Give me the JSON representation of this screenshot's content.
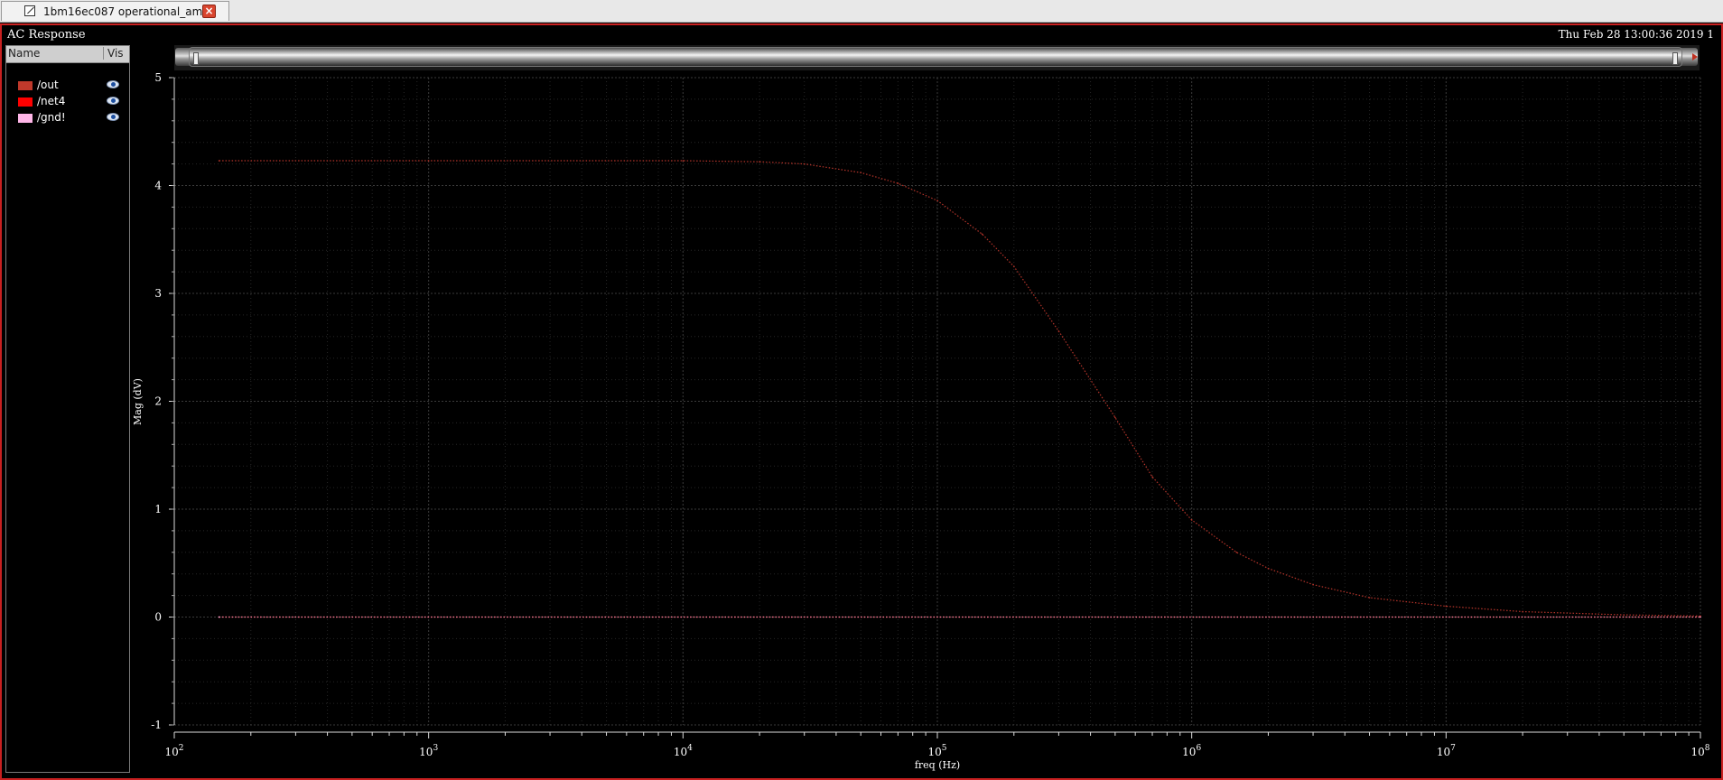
{
  "tab": {
    "label": "1bm16ec087 operational_am..."
  },
  "window": {
    "title": "AC Response",
    "timestamp": "Thu Feb 28 13:00:36 2019  1"
  },
  "legend": {
    "header_name": "Name",
    "header_vis": "Vis",
    "items": [
      {
        "label": "/out",
        "color": "#c0392b",
        "visible_icon": "eye-icon"
      },
      {
        "label": "/net4",
        "color": "#ff0000",
        "visible_icon": "eye-icon"
      },
      {
        "label": "/gnd!",
        "color": "#ffb6e8",
        "visible_icon": "eye-icon"
      }
    ]
  },
  "chart_data": {
    "type": "line",
    "xlabel": "freq (Hz)",
    "ylabel": "Mag (dV)",
    "x_scale": "log",
    "xlim": [
      100,
      100000000
    ],
    "ylim": [
      -1,
      5
    ],
    "grid": true,
    "x_ticks": [
      {
        "base": "10",
        "exp": "2"
      },
      {
        "base": "10",
        "exp": "3"
      },
      {
        "base": "10",
        "exp": "4"
      },
      {
        "base": "10",
        "exp": "5"
      },
      {
        "base": "10",
        "exp": "6"
      },
      {
        "base": "10",
        "exp": "7"
      },
      {
        "base": "10",
        "exp": "8"
      }
    ],
    "y_ticks": [
      "-1",
      "0",
      "1",
      "2",
      "3",
      "4",
      "5"
    ],
    "series": [
      {
        "name": "/out",
        "color": "#b5342a",
        "x": [
          150,
          1000,
          10000,
          20000,
          30000,
          50000,
          70000,
          100000,
          150000,
          200000,
          300000,
          500000,
          700000,
          1000000,
          1500000,
          2000000,
          3000000,
          5000000,
          10000000,
          20000000,
          50000000,
          100000000
        ],
        "values": [
          4.23,
          4.23,
          4.23,
          4.22,
          4.2,
          4.12,
          4.02,
          3.86,
          3.55,
          3.25,
          2.65,
          1.85,
          1.3,
          0.9,
          0.6,
          0.45,
          0.3,
          0.18,
          0.1,
          0.05,
          0.02,
          0.01
        ]
      },
      {
        "name": "/net4",
        "color": "#ff2a2a",
        "x": [
          150,
          100000000
        ],
        "values": [
          0,
          0
        ]
      },
      {
        "name": "/gnd!",
        "color": "#ffb6e8",
        "x": [
          150,
          100000000
        ],
        "values": [
          0,
          0
        ]
      }
    ]
  }
}
